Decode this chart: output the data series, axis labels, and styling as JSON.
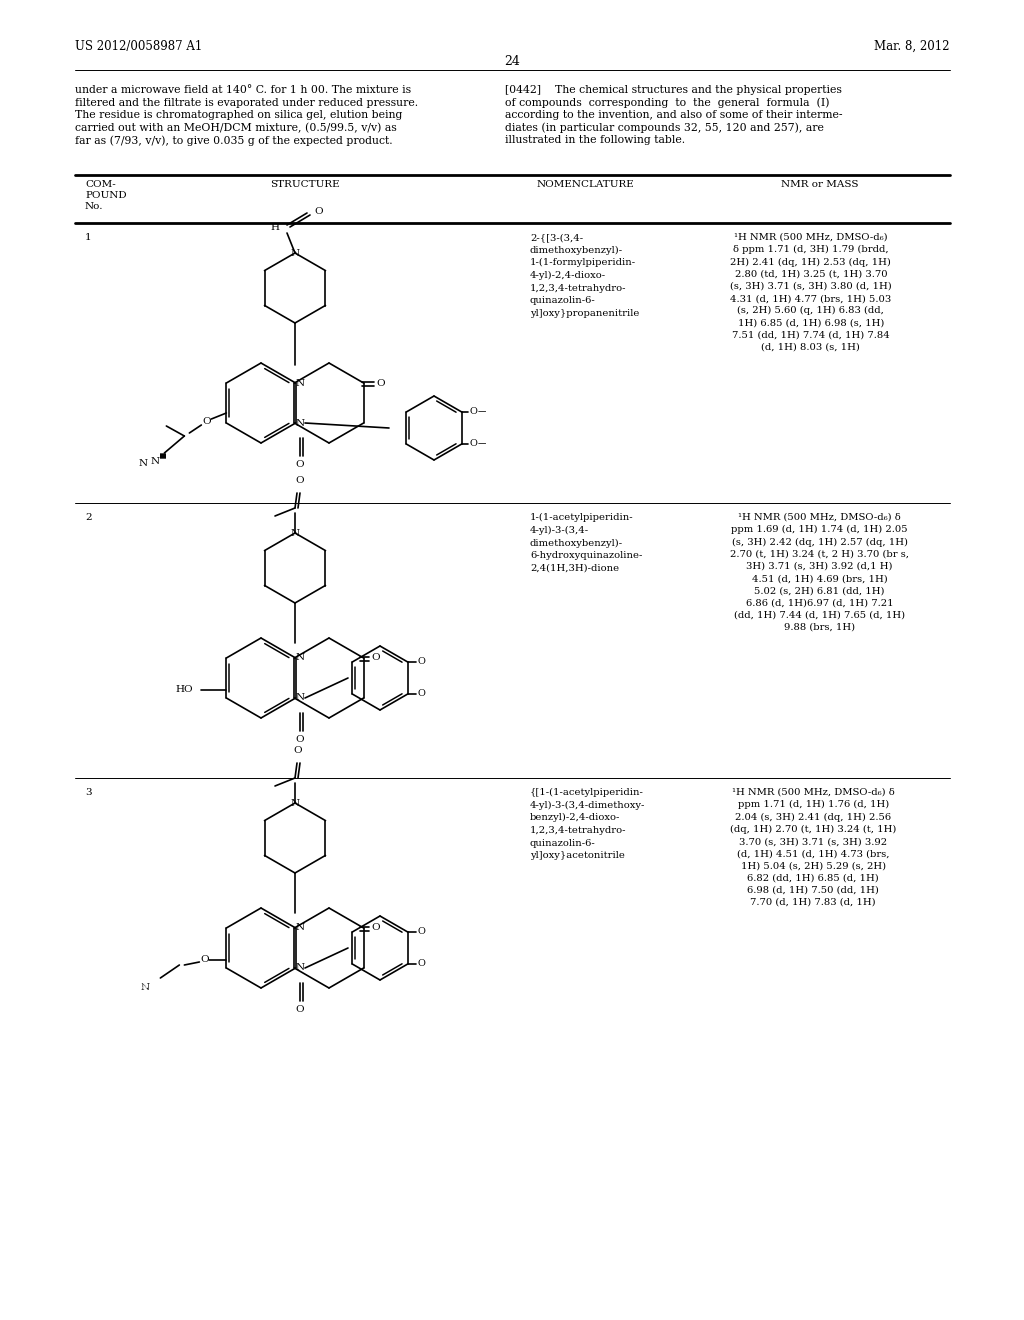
{
  "background_color": "#ffffff",
  "page_width": 10.24,
  "page_height": 13.2,
  "header_left": "US 2012/0058987 A1",
  "header_right": "Mar. 8, 2012",
  "page_number": "24",
  "left_para_lines": [
    "under a microwave field at 140° C. for 1 h 00. The mixture is",
    "filtered and the filtrate is evaporated under reduced pressure.",
    "The residue is chromatographed on silica gel, elution being",
    "carried out with an MeOH/DCM mixture, (0.5/99.5, v/v) as",
    "far as (7/93, v/v), to give 0.035 g of the expected product."
  ],
  "right_para_lines": [
    "[0442]    The chemical structures and the physical properties",
    "of compounds  corresponding  to  the  general  formula  (I)",
    "according to the invention, and also of some of their interme-",
    "diates (in particular compounds 32, 55, 120 and 257), are",
    "illustrated in the following table."
  ],
  "col_header_1": "COM-\nPOUND\nNo.",
  "col_header_2": "STRUCTURE",
  "col_header_3": "NOMENCLATURE",
  "col_header_4": "NMR or MASS",
  "compound1_no": "1",
  "compound1_nomenclature": "2-{[3-(3,4-\ndimethoxybenzyl)-\n1-(1-formylpiperidin-\n4-yl)-2,4-dioxo-\n1,2,3,4-tetrahydro-\nquinazolin-6-\nyl]oxy}propanenitrile",
  "compound1_nmr": "¹H NMR (500 MHz, DMSO-d₆)\nδ ppm 1.71 (d, 3H) 1.79 (brdd,\n2H) 2.41 (dq, 1H) 2.53 (dq, 1H)\n2.80 (td, 1H) 3.25 (t, 1H) 3.70\n(s, 3H) 3.71 (s, 3H) 3.80 (d, 1H)\n4.31 (d, 1H) 4.77 (brs, 1H) 5.03\n(s, 2H) 5.60 (q, 1H) 6.83 (dd,\n1H) 6.85 (d, 1H) 6.98 (s, 1H)\n7.51 (dd, 1H) 7.74 (d, 1H) 7.84\n(d, 1H) 8.03 (s, 1H)",
  "compound2_no": "2",
  "compound2_nomenclature": "1-(1-acetylpiperidin-\n4-yl)-3-(3,4-\ndimethoxybenzyl)-\n6-hydroxyquinazoline-\n2,4(1H,3H)-dione",
  "compound2_nmr": "¹H NMR (500 MHz, DMSO-d₆) δ\nppm 1.69 (d, 1H) 1.74 (d, 1H) 2.05\n(s, 3H) 2.42 (dq, 1H) 2.57 (dq, 1H)\n2.70 (t, 1H) 3.24 (t, 2 H) 3.70 (br s,\n3H) 3.71 (s, 3H) 3.92 (d,1 H)\n4.51 (d, 1H) 4.69 (brs, 1H)\n5.02 (s, 2H) 6.81 (dd, 1H)\n6.86 (d, 1H)6.97 (d, 1H) 7.21\n(dd, 1H) 7.44 (d, 1H) 7.65 (d, 1H)\n9.88 (brs, 1H)",
  "compound3_no": "3",
  "compound3_nomenclature": "{[1-(1-acetylpiperidin-\n4-yl)-3-(3,4-dimethoxy-\nbenzyl)-2,4-dioxo-\n1,2,3,4-tetrahydro-\nquinazolin-6-\nyl]oxy}acetonitrile",
  "compound3_nmr": "¹H NMR (500 MHz, DMSO-d₆) δ\nppm 1.71 (d, 1H) 1.76 (d, 1H)\n2.04 (s, 3H) 2.41 (dq, 1H) 2.56\n(dq, 1H) 2.70 (t, 1H) 3.24 (t, 1H)\n3.70 (s, 3H) 3.71 (s, 3H) 3.92\n(d, 1H) 4.51 (d, 1H) 4.73 (brs,\n1H) 5.04 (s, 2H) 5.29 (s, 2H)\n6.82 (dd, 1H) 6.85 (d, 1H)\n6.98 (d, 1H) 7.50 (dd, 1H)\n7.70 (d, 1H) 7.83 (d, 1H)"
}
